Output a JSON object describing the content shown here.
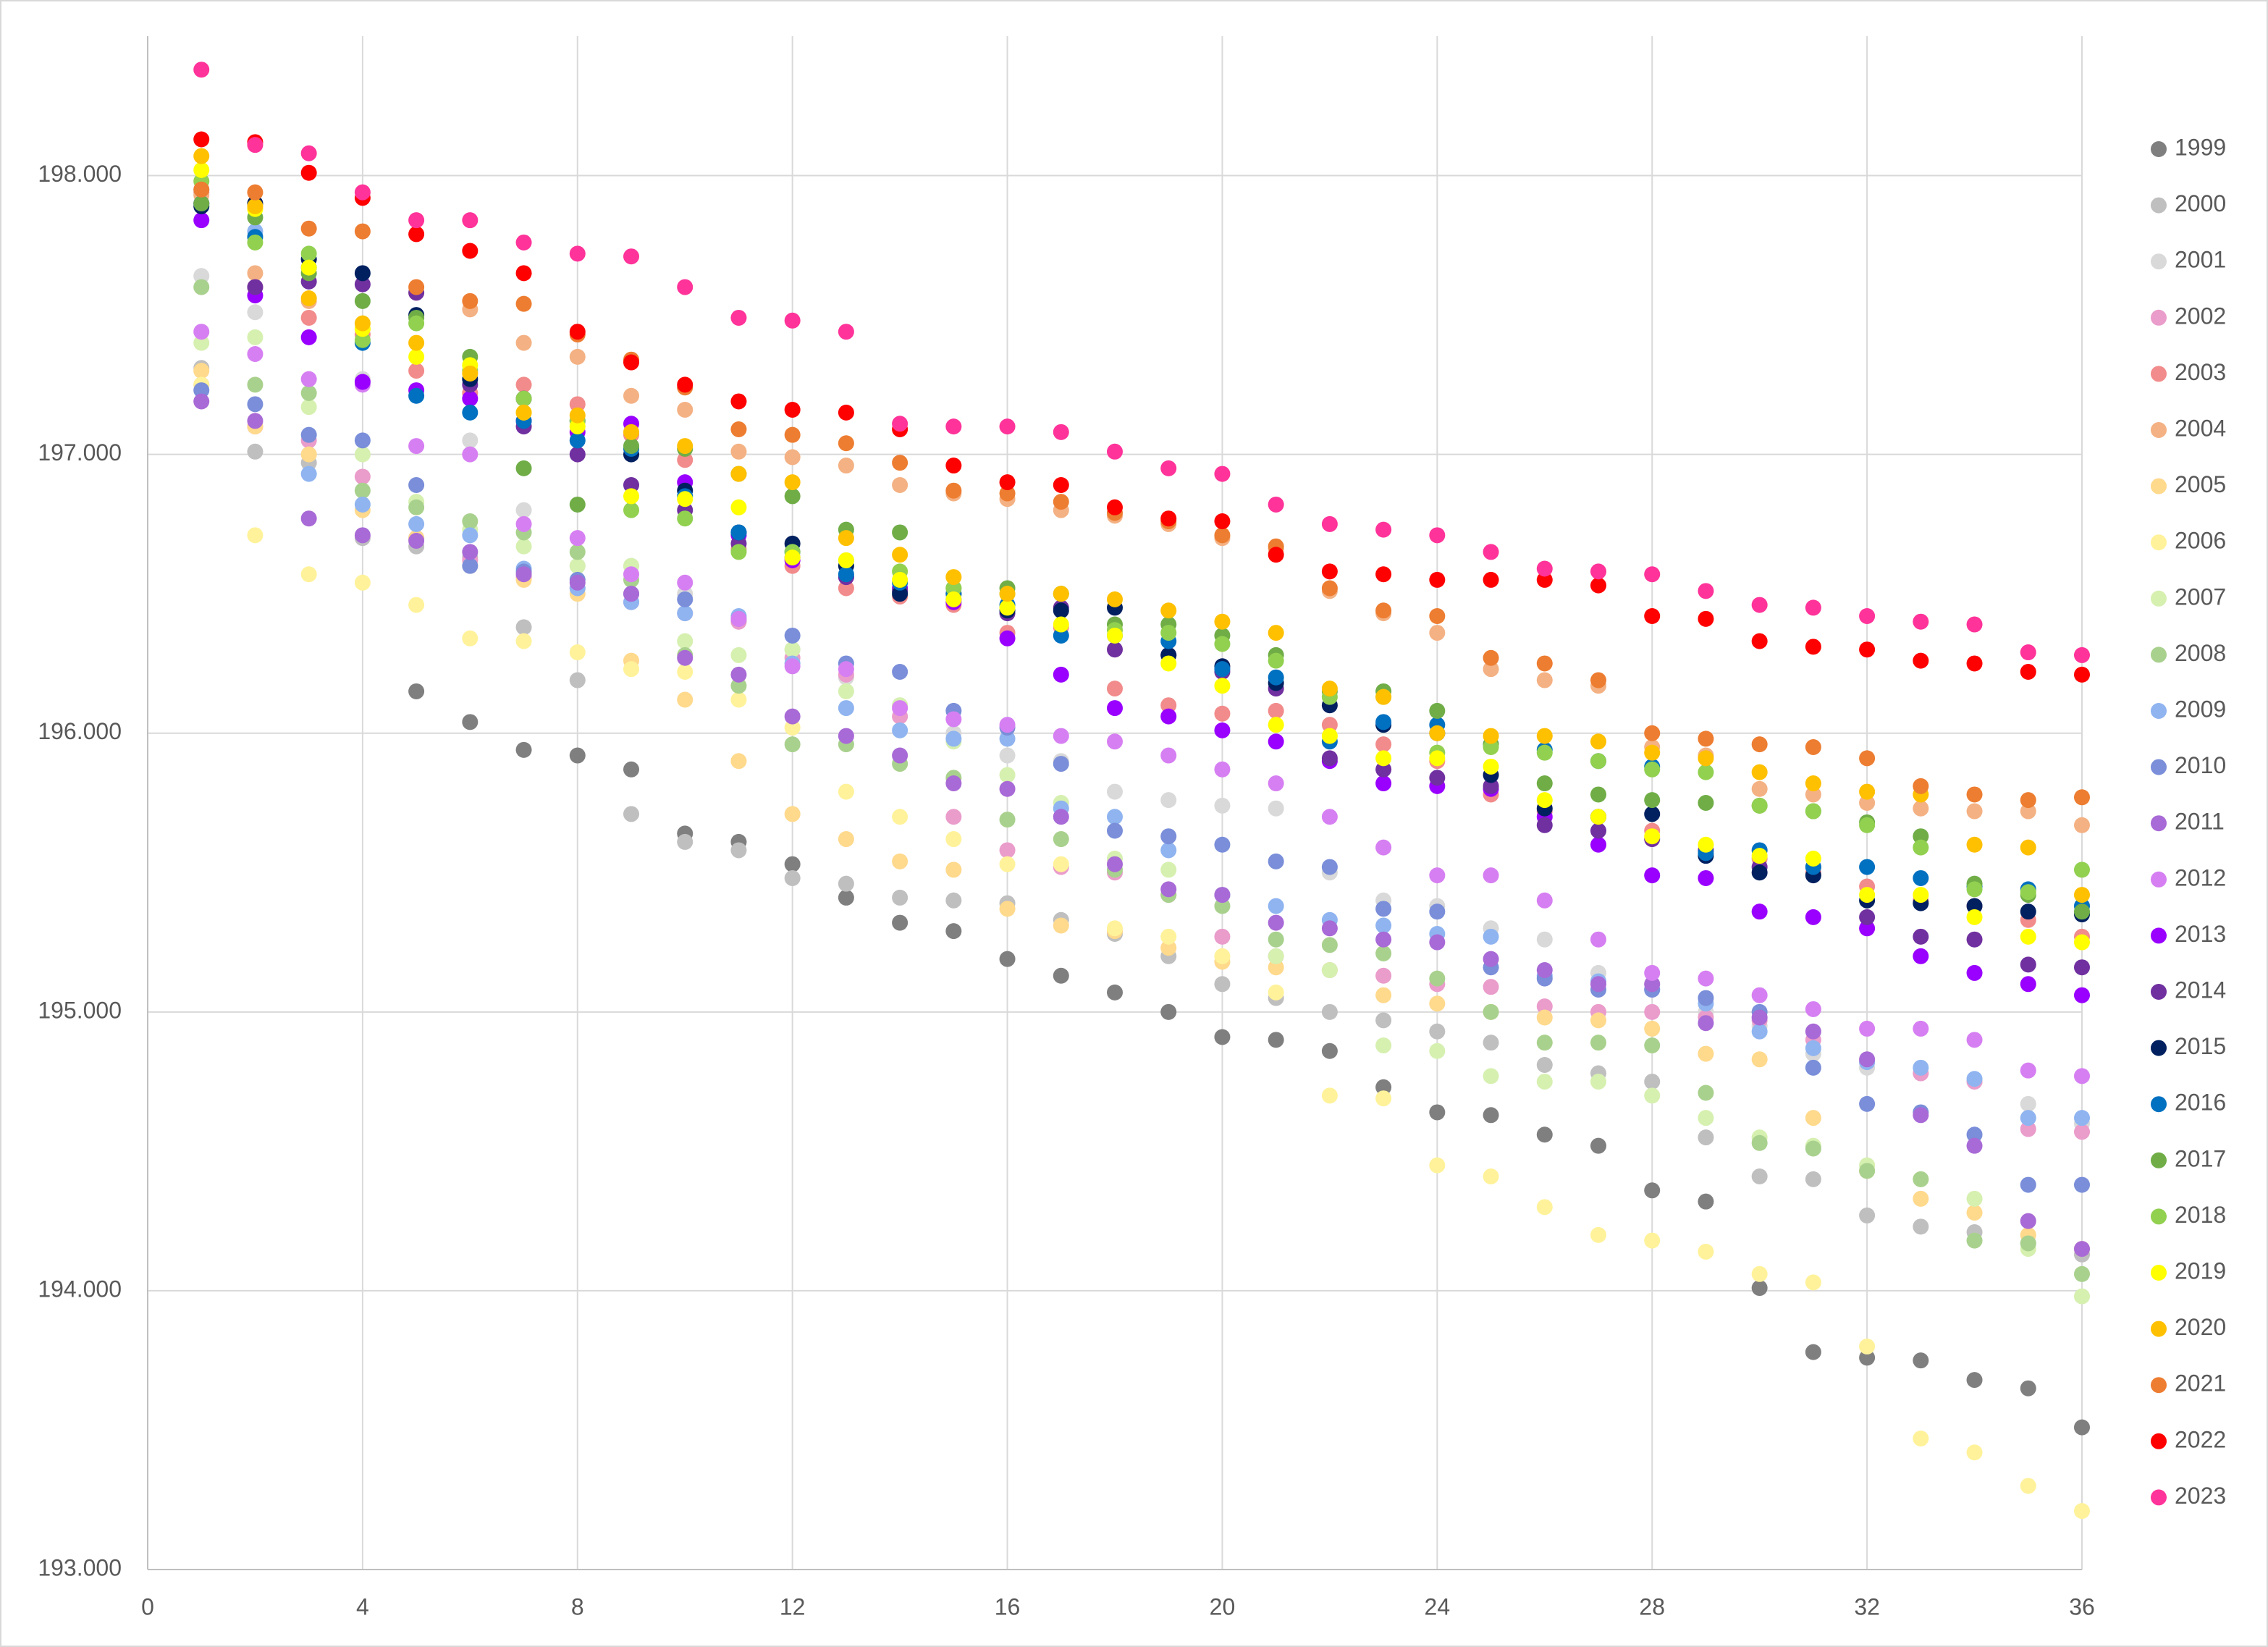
{
  "chart_data": {
    "type": "scatter",
    "x": [
      1,
      2,
      3,
      4,
      5,
      6,
      7,
      8,
      9,
      10,
      11,
      12,
      13,
      14,
      15,
      16,
      17,
      18,
      19,
      20,
      21,
      22,
      23,
      24,
      25,
      26,
      27,
      28,
      29,
      30,
      31,
      32,
      33,
      34,
      35,
      36
    ],
    "xlim": [
      0,
      36
    ],
    "xticks": [
      0,
      4,
      8,
      12,
      16,
      20,
      24,
      28,
      32,
      36
    ],
    "ylim": [
      193,
      198.5
    ],
    "yticks": [
      {
        "value": 193,
        "label": "193.000"
      },
      {
        "value": 194,
        "label": "194.000"
      },
      {
        "value": 195,
        "label": "195.000"
      },
      {
        "value": 196,
        "label": "196.000"
      },
      {
        "value": 197,
        "label": "197.000"
      },
      {
        "value": 198,
        "label": "198.000"
      }
    ],
    "grid": true,
    "legend": "right",
    "series": [
      {
        "name": "1999",
        "color": "#7f7f7f",
        "values": [
          null,
          null,
          null,
          null,
          196.15,
          196.04,
          195.94,
          195.92,
          195.87,
          195.64,
          195.61,
          195.53,
          195.41,
          195.32,
          195.29,
          195.19,
          195.13,
          195.07,
          195.0,
          194.91,
          194.9,
          194.86,
          194.73,
          194.64,
          194.63,
          194.56,
          194.52,
          194.36,
          194.32,
          194.01,
          193.78,
          193.76,
          193.75,
          193.68,
          193.65,
          193.51
        ]
      },
      {
        "name": "2000",
        "color": "#bfbfbf",
        "values": [
          197.31,
          197.01,
          196.97,
          196.7,
          196.67,
          196.63,
          196.38,
          196.19,
          195.71,
          195.61,
          195.58,
          195.48,
          195.46,
          195.41,
          195.4,
          195.39,
          195.33,
          195.28,
          195.2,
          195.1,
          195.05,
          195.0,
          194.97,
          194.93,
          194.89,
          194.81,
          194.78,
          194.75,
          194.55,
          194.41,
          194.4,
          194.27,
          194.23,
          194.21,
          194.17,
          194.13
        ]
      },
      {
        "name": "2001",
        "color": "#d9d9d9",
        "values": [
          197.64,
          197.51,
          197.0,
          197.27,
          196.7,
          197.05,
          196.8,
          196.6,
          196.6,
          196.5,
          196.4,
          196.3,
          196.2,
          196.1,
          196.0,
          195.92,
          195.9,
          195.79,
          195.76,
          195.74,
          195.73,
          195.5,
          195.4,
          195.38,
          195.3,
          195.26,
          195.14,
          195.1,
          195.0,
          194.95,
          194.85,
          194.8,
          194.78,
          194.75,
          194.67,
          194.6
        ]
      },
      {
        "name": "2002",
        "color": "#ea9ccb",
        "values": [
          197.25,
          197.1,
          197.05,
          196.92,
          196.7,
          196.62,
          196.56,
          196.52,
          196.47,
          196.43,
          196.4,
          196.27,
          196.21,
          196.06,
          195.7,
          195.58,
          195.52,
          195.5,
          195.42,
          195.27,
          195.2,
          195.15,
          195.13,
          195.1,
          195.09,
          195.02,
          195.0,
          195.0,
          194.98,
          194.97,
          194.9,
          194.82,
          194.78,
          194.75,
          194.58,
          194.57
        ]
      },
      {
        "name": "2003",
        "color": "#f28b8b",
        "values": [
          197.94,
          197.6,
          197.49,
          197.43,
          197.3,
          197.22,
          197.25,
          197.18,
          197.07,
          196.98,
          196.66,
          196.6,
          196.52,
          196.49,
          196.46,
          196.36,
          196.38,
          196.16,
          196.1,
          196.07,
          196.08,
          196.03,
          195.96,
          195.9,
          195.78,
          195.72,
          195.7,
          195.65,
          195.58,
          195.55,
          195.5,
          195.45,
          195.4,
          195.38,
          195.33,
          195.27
        ]
      },
      {
        "name": "2004",
        "color": "#f4b183",
        "values": [
          197.93,
          197.65,
          197.55,
          197.45,
          197.58,
          197.52,
          197.4,
          197.35,
          197.21,
          197.16,
          197.01,
          196.99,
          196.96,
          196.89,
          196.86,
          196.84,
          196.8,
          196.78,
          196.75,
          196.7,
          196.66,
          196.51,
          196.43,
          196.36,
          196.23,
          196.19,
          196.17,
          195.95,
          195.92,
          195.8,
          195.78,
          195.75,
          195.73,
          195.72,
          195.72,
          195.67
        ]
      },
      {
        "name": "2005",
        "color": "#ffd98c",
        "values": [
          197.3,
          197.1,
          197.0,
          196.8,
          196.7,
          196.6,
          196.55,
          196.5,
          196.26,
          196.12,
          195.9,
          195.71,
          195.62,
          195.54,
          195.51,
          195.37,
          195.31,
          195.29,
          195.23,
          195.18,
          195.16,
          195.15,
          195.06,
          195.03,
          195.0,
          194.98,
          194.97,
          194.94,
          194.85,
          194.83,
          194.62,
          194.43,
          194.33,
          194.28,
          194.2,
          194.15
        ]
      },
      {
        "name": "2006",
        "color": "#fff29a",
        "values": [
          197.25,
          196.71,
          196.57,
          196.54,
          196.46,
          196.34,
          196.33,
          196.29,
          196.23,
          196.22,
          196.12,
          196.02,
          195.79,
          195.7,
          195.62,
          195.53,
          195.53,
          195.3,
          195.27,
          195.2,
          195.07,
          194.7,
          194.69,
          194.45,
          194.41,
          194.3,
          194.2,
          194.18,
          194.14,
          194.06,
          194.03,
          193.8,
          193.47,
          193.42,
          193.3,
          193.21
        ]
      },
      {
        "name": "2007",
        "color": "#d6f0b0",
        "values": [
          197.4,
          197.42,
          197.17,
          197.0,
          196.83,
          196.73,
          196.67,
          196.6,
          196.6,
          196.33,
          196.28,
          196.3,
          196.15,
          196.1,
          195.97,
          195.85,
          195.75,
          195.55,
          195.51,
          195.42,
          195.2,
          195.15,
          194.88,
          194.86,
          194.77,
          194.75,
          194.75,
          194.7,
          194.62,
          194.55,
          194.52,
          194.45,
          194.4,
          194.33,
          194.15,
          193.98
        ]
      },
      {
        "name": "2008",
        "color": "#a9d18e",
        "values": [
          197.6,
          197.25,
          197.22,
          196.87,
          196.81,
          196.76,
          196.72,
          196.65,
          196.55,
          196.28,
          196.17,
          195.96,
          195.96,
          195.89,
          195.84,
          195.69,
          195.62,
          195.51,
          195.42,
          195.38,
          195.26,
          195.24,
          195.21,
          195.12,
          195.0,
          194.89,
          194.89,
          194.88,
          194.71,
          194.53,
          194.51,
          194.43,
          194.4,
          194.18,
          194.17,
          194.06
        ]
      },
      {
        "name": "2009",
        "color": "#8fb4f0",
        "values": [
          197.95,
          197.8,
          196.93,
          196.82,
          196.75,
          196.71,
          196.59,
          196.52,
          196.47,
          196.43,
          196.42,
          196.25,
          196.09,
          196.01,
          195.98,
          195.98,
          195.73,
          195.7,
          195.58,
          195.42,
          195.38,
          195.33,
          195.31,
          195.28,
          195.27,
          195.13,
          195.11,
          195.08,
          195.03,
          194.93,
          194.87,
          194.82,
          194.8,
          194.76,
          194.62,
          194.62
        ]
      },
      {
        "name": "2010",
        "color": "#7a8ed9",
        "values": [
          197.23,
          197.18,
          197.07,
          197.05,
          196.89,
          196.6,
          196.58,
          196.55,
          196.5,
          196.48,
          196.41,
          196.35,
          196.25,
          196.22,
          196.08,
          196.02,
          195.89,
          195.65,
          195.63,
          195.6,
          195.54,
          195.52,
          195.37,
          195.36,
          195.16,
          195.12,
          195.08,
          195.08,
          195.05,
          195.0,
          194.8,
          194.67,
          194.64,
          194.56,
          194.38,
          194.38
        ]
      },
      {
        "name": "2011",
        "color": "#a86ad6",
        "values": [
          197.19,
          197.12,
          196.77,
          196.71,
          196.69,
          196.65,
          196.57,
          196.54,
          196.5,
          196.27,
          196.21,
          196.06,
          195.99,
          195.92,
          195.82,
          195.8,
          195.7,
          195.53,
          195.44,
          195.42,
          195.32,
          195.3,
          195.26,
          195.25,
          195.19,
          195.15,
          195.1,
          195.1,
          194.96,
          194.98,
          194.93,
          194.83,
          194.63,
          194.52,
          194.25,
          194.15
        ]
      },
      {
        "name": "2012",
        "color": "#d67ff2",
        "values": [
          197.44,
          197.36,
          197.27,
          197.25,
          197.03,
          197.0,
          196.75,
          196.7,
          196.57,
          196.54,
          196.41,
          196.24,
          196.23,
          196.09,
          196.05,
          196.03,
          195.99,
          195.97,
          195.92,
          195.87,
          195.82,
          195.7,
          195.59,
          195.49,
          195.49,
          195.4,
          195.26,
          195.14,
          195.12,
          195.06,
          195.01,
          194.94,
          194.94,
          194.9,
          194.79,
          194.77
        ]
      },
      {
        "name": "2013",
        "color": "#9900ff",
        "values": [
          197.84,
          197.57,
          197.42,
          197.26,
          197.23,
          197.2,
          197.12,
          197.08,
          197.11,
          196.9,
          196.71,
          196.62,
          196.56,
          196.52,
          196.47,
          196.34,
          196.21,
          196.09,
          196.06,
          196.01,
          195.97,
          195.9,
          195.82,
          195.81,
          195.8,
          195.7,
          195.6,
          195.49,
          195.48,
          195.36,
          195.34,
          195.3,
          195.2,
          195.14,
          195.1,
          195.06
        ]
      },
      {
        "name": "2014",
        "color": "#7030a0",
        "values": [
          197.9,
          197.6,
          197.62,
          197.61,
          197.58,
          197.25,
          197.1,
          197.0,
          196.89,
          196.8,
          196.68,
          196.63,
          196.56,
          196.51,
          196.48,
          196.43,
          196.45,
          196.3,
          196.28,
          196.22,
          196.16,
          195.91,
          195.87,
          195.84,
          195.81,
          195.67,
          195.65,
          195.62,
          195.58,
          195.52,
          195.52,
          195.34,
          195.27,
          195.26,
          195.17,
          195.16
        ]
      },
      {
        "name": "2015",
        "color": "#002060",
        "values": [
          197.89,
          197.9,
          197.7,
          197.65,
          197.5,
          197.27,
          197.2,
          197.12,
          197.0,
          196.87,
          196.72,
          196.68,
          196.6,
          196.5,
          196.5,
          196.44,
          196.44,
          196.45,
          196.28,
          196.24,
          196.18,
          196.1,
          196.03,
          196.0,
          195.85,
          195.73,
          195.7,
          195.71,
          195.56,
          195.5,
          195.49,
          195.4,
          195.39,
          195.38,
          195.36,
          195.35
        ]
      },
      {
        "name": "2016",
        "color": "#0070c0",
        "values": [
          197.9,
          197.78,
          197.67,
          197.4,
          197.21,
          197.15,
          197.12,
          197.05,
          197.02,
          196.85,
          196.72,
          196.65,
          196.57,
          196.54,
          196.5,
          196.46,
          196.35,
          196.35,
          196.33,
          196.23,
          196.2,
          195.97,
          196.04,
          196.03,
          195.96,
          195.94,
          195.9,
          195.88,
          195.57,
          195.58,
          195.52,
          195.52,
          195.48,
          195.45,
          195.44,
          195.38
        ]
      },
      {
        "name": "2017",
        "color": "#70ad47",
        "values": [
          197.9,
          197.85,
          197.65,
          197.55,
          197.49,
          197.35,
          196.95,
          196.82,
          197.03,
          197.02,
          196.93,
          196.85,
          196.73,
          196.72,
          196.52,
          196.52,
          196.5,
          196.39,
          196.39,
          196.35,
          196.28,
          196.15,
          196.15,
          196.08,
          195.96,
          195.82,
          195.78,
          195.76,
          195.75,
          195.74,
          195.72,
          195.68,
          195.63,
          195.46,
          195.42,
          195.36
        ]
      },
      {
        "name": "2018",
        "color": "#92d050",
        "values": [
          197.98,
          197.76,
          197.72,
          197.41,
          197.47,
          197.3,
          197.2,
          197.12,
          196.8,
          196.77,
          196.65,
          196.65,
          196.62,
          196.58,
          196.52,
          196.5,
          196.5,
          196.37,
          196.36,
          196.32,
          196.26,
          196.13,
          196.13,
          195.93,
          195.95,
          195.93,
          195.9,
          195.87,
          195.86,
          195.74,
          195.72,
          195.67,
          195.59,
          195.44,
          195.43,
          195.51
        ]
      },
      {
        "name": "2019",
        "color": "#ffff00",
        "values": [
          198.02,
          197.88,
          197.67,
          197.45,
          197.35,
          197.32,
          197.15,
          197.1,
          196.85,
          196.84,
          196.81,
          196.63,
          196.62,
          196.55,
          196.48,
          196.45,
          196.39,
          196.35,
          196.25,
          196.17,
          196.03,
          195.99,
          195.91,
          195.91,
          195.88,
          195.76,
          195.7,
          195.63,
          195.6,
          195.56,
          195.55,
          195.42,
          195.42,
          195.34,
          195.27,
          195.25
        ]
      },
      {
        "name": "2020",
        "color": "#ffc000",
        "values": [
          198.07,
          197.89,
          197.56,
          197.47,
          197.4,
          197.29,
          197.15,
          197.14,
          197.08,
          197.03,
          196.93,
          196.9,
          196.7,
          196.64,
          196.56,
          196.5,
          196.5,
          196.48,
          196.44,
          196.4,
          196.36,
          196.16,
          196.13,
          196.0,
          195.99,
          195.99,
          195.97,
          195.93,
          195.91,
          195.86,
          195.82,
          195.79,
          195.78,
          195.6,
          195.59,
          195.42
        ]
      },
      {
        "name": "2021",
        "color": "#ed7d31",
        "values": [
          197.95,
          197.94,
          197.81,
          197.8,
          197.6,
          197.55,
          197.54,
          197.43,
          197.34,
          197.24,
          197.09,
          197.07,
          197.04,
          196.97,
          196.87,
          196.86,
          196.83,
          196.79,
          196.76,
          196.71,
          196.67,
          196.52,
          196.44,
          196.42,
          196.27,
          196.25,
          196.19,
          196.0,
          195.98,
          195.96,
          195.95,
          195.91,
          195.81,
          195.78,
          195.76,
          195.77
        ]
      },
      {
        "name": "2022",
        "color": "#ff0000",
        "values": [
          198.13,
          198.12,
          198.01,
          197.92,
          197.79,
          197.73,
          197.65,
          197.44,
          197.33,
          197.25,
          197.19,
          197.16,
          197.15,
          197.09,
          196.96,
          196.9,
          196.89,
          196.81,
          196.77,
          196.76,
          196.64,
          196.58,
          196.57,
          196.55,
          196.55,
          196.55,
          196.53,
          196.42,
          196.41,
          196.33,
          196.31,
          196.3,
          196.26,
          196.25,
          196.22,
          196.21
        ]
      },
      {
        "name": "2023",
        "color": "#ff3399",
        "values": [
          198.38,
          198.11,
          198.08,
          197.94,
          197.84,
          197.84,
          197.76,
          197.72,
          197.71,
          197.6,
          197.49,
          197.48,
          197.44,
          197.11,
          197.1,
          197.1,
          197.08,
          197.01,
          196.95,
          196.93,
          196.82,
          196.75,
          196.73,
          196.71,
          196.65,
          196.59,
          196.58,
          196.57,
          196.51,
          196.46,
          196.45,
          196.42,
          196.4,
          196.39,
          196.29,
          196.28
        ]
      }
    ]
  }
}
